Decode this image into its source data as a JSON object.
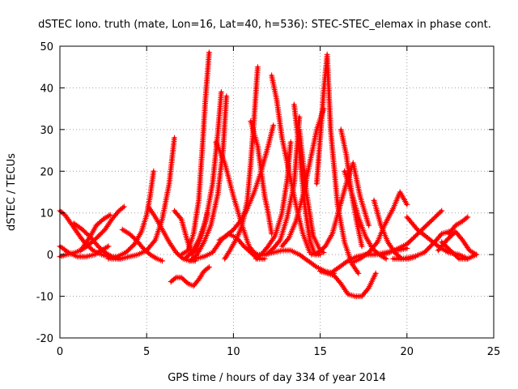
{
  "chart_data": {
    "type": "line",
    "title": "dSTEC Iono. truth (mate, Lon=16, Lat=40, h=536): STEC-STEC_elemax in phase cont.",
    "xlabel": "GPS time / hours of day 334 of year 2014",
    "ylabel": "dSTEC  / TECUs",
    "xlim": [
      0,
      25
    ],
    "ylim": [
      -20,
      50
    ],
    "xticks": [
      0,
      5,
      10,
      15,
      20,
      25
    ],
    "yticks": [
      -20,
      -10,
      0,
      10,
      20,
      30,
      40,
      50
    ],
    "grid": true,
    "legend": "none",
    "marker": "plus",
    "color": "#ff0000",
    "series": [
      {
        "x": [
          0.0,
          0.3,
          0.8,
          1.3,
          1.9,
          2.4,
          2.8,
          3.2,
          3.5
        ],
        "y": [
          10.5,
          9.5,
          6.5,
          3.5,
          1.0,
          0.0,
          -0.5,
          -0.5,
          -1.0
        ]
      },
      {
        "x": [
          0.0,
          0.4,
          0.9,
          1.4,
          2.0,
          2.6,
          3.0,
          3.4,
          3.7
        ],
        "y": [
          -0.5,
          0.0,
          0.5,
          1.5,
          3.5,
          6.0,
          8.5,
          10.5,
          11.5
        ]
      },
      {
        "x": [
          0.0,
          0.5,
          1.0,
          1.5,
          2.0,
          2.4,
          2.8
        ],
        "y": [
          2.0,
          0.5,
          -0.5,
          -0.5,
          0.0,
          1.0,
          2.0
        ]
      },
      {
        "x": [
          0.8,
          1.3,
          1.8,
          2.2,
          2.6,
          3.0,
          3.4
        ],
        "y": [
          7.5,
          6.0,
          4.0,
          2.0,
          0.5,
          -0.5,
          -1.0
        ]
      },
      {
        "x": [
          1.2,
          1.7,
          2.1,
          2.5,
          2.9
        ],
        "y": [
          1.0,
          4.0,
          7.0,
          8.5,
          9.5
        ]
      },
      {
        "x": [
          3.6,
          4.0,
          4.4,
          4.8,
          5.2,
          5.6,
          5.9
        ],
        "y": [
          6.0,
          5.0,
          3.5,
          1.5,
          0.0,
          -1.0,
          -1.5
        ]
      },
      {
        "x": [
          2.8,
          3.3,
          3.8,
          4.3,
          4.7,
          5.0,
          5.2,
          5.4
        ],
        "y": [
          -1.0,
          -0.5,
          0.5,
          2.5,
          5.5,
          9.5,
          14.0,
          20.0
        ]
      },
      {
        "x": [
          3.0,
          3.5,
          4.0,
          4.5,
          5.0,
          5.5,
          5.9,
          6.3,
          6.6
        ],
        "y": [
          -1.0,
          -1.0,
          -0.5,
          0.0,
          1.0,
          3.5,
          8.5,
          17.0,
          28.0
        ]
      },
      {
        "x": [
          5.1,
          5.5,
          5.9,
          6.3,
          6.7,
          7.1,
          7.5,
          7.8
        ],
        "y": [
          11.5,
          9.0,
          6.0,
          3.0,
          0.5,
          -1.0,
          -1.5,
          -1.5
        ]
      },
      {
        "x": [
          6.4,
          6.7,
          7.0,
          7.4,
          7.7,
          8.0,
          8.3,
          8.6
        ],
        "y": [
          -6.5,
          -5.5,
          -5.5,
          -7.0,
          -7.5,
          -6.0,
          -4.0,
          -3.0
        ]
      },
      {
        "x": [
          6.6,
          7.0,
          7.3,
          7.6,
          7.9,
          8.2,
          8.5
        ],
        "y": [
          10.5,
          8.5,
          4.0,
          0.0,
          1.5,
          5.0,
          10.0
        ]
      },
      {
        "x": [
          7.0,
          7.4,
          7.7,
          8.0,
          8.2,
          8.4,
          8.6
        ],
        "y": [
          0.0,
          1.0,
          5.0,
          13.0,
          25.0,
          38.0,
          48.5
        ]
      },
      {
        "x": [
          7.2,
          7.6,
          8.0,
          8.4,
          8.8,
          9.1,
          9.3
        ],
        "y": [
          -1.0,
          0.5,
          3.5,
          8.0,
          17.0,
          29.0,
          39.0
        ]
      },
      {
        "x": [
          7.5,
          7.9,
          8.3,
          8.7,
          9.1,
          9.4,
          9.6
        ],
        "y": [
          -1.5,
          0.0,
          3.0,
          7.0,
          14.5,
          25.0,
          38.0
        ]
      },
      {
        "x": [
          7.8,
          8.3,
          8.8,
          9.3,
          9.7,
          10.2,
          10.6,
          11.0,
          11.4,
          11.8
        ],
        "y": [
          -1.0,
          -0.5,
          0.5,
          3.5,
          5.0,
          4.0,
          2.0,
          0.5,
          -1.0,
          -1.0
        ]
      },
      {
        "x": [
          9.0,
          9.5,
          10.0,
          10.5,
          10.9,
          11.2,
          11.4
        ],
        "y": [
          27.0,
          22.0,
          14.0,
          7.0,
          2.0,
          0.5,
          0.0
        ]
      },
      {
        "x": [
          9.2,
          9.6,
          10.0,
          10.4,
          10.8,
          11.2,
          11.6,
          12.0,
          12.3
        ],
        "y": [
          3.5,
          4.5,
          6.0,
          8.0,
          11.0,
          15.0,
          20.0,
          26.0,
          31.0
        ]
      },
      {
        "x": [
          9.5,
          9.8,
          10.2,
          10.5,
          10.8,
          11.0,
          11.2,
          11.4
        ],
        "y": [
          -1.0,
          1.0,
          4.0,
          7.0,
          13.0,
          22.0,
          33.0,
          45.0
        ]
      },
      {
        "x": [
          11.0,
          11.2,
          11.4,
          11.6,
          11.8,
          12.0,
          12.2
        ],
        "y": [
          32.0,
          29.0,
          26.0,
          20.0,
          14.0,
          10.0,
          5.0
        ]
      },
      {
        "x": [
          11.3,
          11.6,
          12.0,
          12.4,
          12.8,
          13.1,
          13.3
        ],
        "y": [
          -1.0,
          0.0,
          2.0,
          4.5,
          10.0,
          18.0,
          27.0
        ]
      },
      {
        "x": [
          11.5,
          11.9,
          12.3,
          12.7,
          13.1,
          13.5,
          13.8
        ],
        "y": [
          0.0,
          0.0,
          1.5,
          3.5,
          9.0,
          17.0,
          33.0
        ]
      },
      {
        "x": [
          12.2,
          12.5,
          12.8,
          13.2,
          13.6,
          14.0,
          14.4
        ],
        "y": [
          43.0,
          37.0,
          28.0,
          20.0,
          12.0,
          5.0,
          0.5
        ]
      },
      {
        "x": [
          12.8,
          13.2,
          13.6,
          14.0,
          14.4,
          14.8,
          15.2
        ],
        "y": [
          2.0,
          4.0,
          8.0,
          14.0,
          22.0,
          30.0,
          35.0
        ]
      },
      {
        "x": [
          11.8,
          12.3,
          12.8,
          13.3,
          13.8,
          14.3,
          14.8,
          15.3,
          15.8
        ],
        "y": [
          0.0,
          0.5,
          1.0,
          1.0,
          0.0,
          -1.5,
          -3.0,
          -4.0,
          -4.5
        ]
      },
      {
        "x": [
          13.5,
          13.8,
          14.1,
          14.4,
          14.7,
          15.0
        ],
        "y": [
          36.0,
          25.0,
          12.0,
          3.5,
          0.0,
          0.0
        ]
      },
      {
        "x": [
          13.8,
          14.2,
          14.6,
          15.0,
          15.2
        ],
        "y": [
          30.0,
          15.0,
          4.5,
          1.0,
          0.5
        ]
      },
      {
        "x": [
          14.8,
          15.0,
          15.2,
          15.4,
          15.6,
          16.0,
          16.4,
          16.8,
          17.2
        ],
        "y": [
          17.0,
          28.0,
          39.0,
          48.0,
          30.0,
          12.0,
          3.0,
          -2.0,
          -4.5
        ]
      },
      {
        "x": [
          14.5,
          14.9,
          15.3,
          15.7,
          16.1,
          16.5,
          16.9,
          17.3,
          17.8
        ],
        "y": [
          0.0,
          0.5,
          2.0,
          5.0,
          11.0,
          17.0,
          22.0,
          14.0,
          7.0
        ]
      },
      {
        "x": [
          15.0,
          15.4,
          15.8,
          16.2,
          16.6,
          17.0,
          17.4,
          17.8,
          18.2
        ],
        "y": [
          -4.0,
          -4.5,
          -5.0,
          -7.0,
          -9.5,
          -10.0,
          -10.0,
          -8.0,
          -4.5
        ]
      },
      {
        "x": [
          16.2,
          16.5,
          16.8,
          17.1,
          17.4
        ],
        "y": [
          30.0,
          24.0,
          15.0,
          8.0,
          2.0
        ]
      },
      {
        "x": [
          16.4,
          16.8,
          17.2,
          17.6,
          18.0,
          18.4,
          18.8
        ],
        "y": [
          20.0,
          15.0,
          9.0,
          4.5,
          1.5,
          0.0,
          -1.0
        ]
      },
      {
        "x": [
          15.6,
          16.1,
          16.6,
          17.1,
          17.6,
          18.2,
          18.8,
          19.4,
          20.0
        ],
        "y": [
          -4.5,
          -3.0,
          -1.5,
          -0.5,
          0.0,
          0.0,
          0.5,
          1.0,
          1.5
        ]
      },
      {
        "x": [
          16.8,
          17.3,
          17.8,
          18.3,
          18.7,
          19.2,
          19.6,
          20.0
        ],
        "y": [
          -2.0,
          -1.0,
          0.5,
          3.0,
          7.0,
          11.0,
          15.0,
          12.0
        ]
      },
      {
        "x": [
          18.1,
          18.5,
          18.9,
          19.3,
          19.7,
          20.1,
          20.5
        ],
        "y": [
          13.0,
          7.0,
          3.0,
          0.5,
          -1.0,
          -1.0,
          -0.5
        ]
      },
      {
        "x": [
          18.6,
          19.0,
          19.5,
          20.0,
          20.5,
          21.0,
          21.5,
          22.0
        ],
        "y": [
          0.0,
          0.5,
          1.5,
          2.5,
          4.5,
          6.5,
          8.5,
          10.5
        ]
      },
      {
        "x": [
          19.2,
          19.8,
          20.4,
          21.0,
          21.6,
          22.0,
          22.4
        ],
        "y": [
          -1.0,
          -1.0,
          -0.5,
          0.5,
          3.0,
          5.0,
          5.5
        ]
      },
      {
        "x": [
          20.0,
          20.6,
          21.2,
          21.8,
          22.4,
          23.0,
          23.5
        ],
        "y": [
          9.0,
          6.0,
          4.0,
          2.0,
          0.5,
          0.0,
          -1.0
        ]
      },
      {
        "x": [
          21.8,
          22.3,
          22.8,
          23.2,
          23.6,
          24.0
        ],
        "y": [
          1.0,
          3.5,
          5.5,
          3.5,
          1.0,
          0.0
        ]
      },
      {
        "x": [
          22.0,
          22.5,
          23.0,
          23.5,
          24.0
        ],
        "y": [
          3.0,
          1.0,
          -1.0,
          -1.0,
          0.0
        ]
      },
      {
        "x": [
          22.4,
          22.8,
          23.2,
          23.5
        ],
        "y": [
          5.0,
          7.0,
          8.0,
          9.0
        ]
      }
    ]
  }
}
